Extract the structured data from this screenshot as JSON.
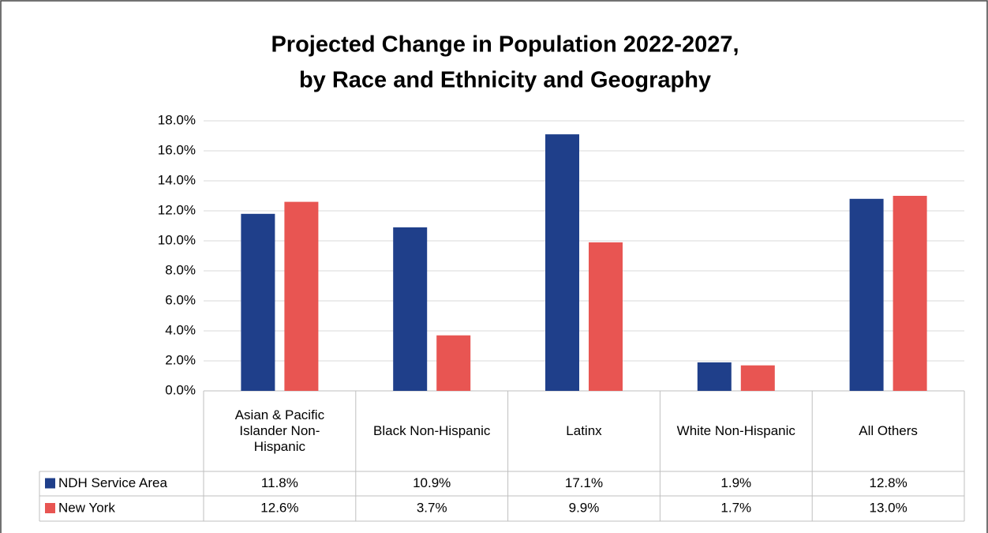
{
  "chart_data": {
    "type": "bar",
    "title": [
      "Projected Change in Population 2022-2027,",
      "by Race and Ethnicity and Geography"
    ],
    "categories": [
      "Asian & Pacific Islander Non-Hispanic",
      "Black Non-Hispanic",
      "Latinx",
      "White Non-Hispanic",
      "All Others"
    ],
    "series": [
      {
        "name": "NDH Service Area",
        "color": "#1f3f8a",
        "values": [
          11.8,
          10.9,
          17.1,
          1.9,
          12.8
        ],
        "value_labels": [
          "11.8%",
          "10.9%",
          "17.1%",
          "1.9%",
          "12.8%"
        ]
      },
      {
        "name": "New York",
        "color": "#e85552",
        "values": [
          12.6,
          3.7,
          9.9,
          1.7,
          13.0
        ],
        "value_labels": [
          "12.6%",
          "3.7%",
          "9.9%",
          "1.7%",
          "13.0%"
        ]
      }
    ],
    "ylim": [
      0,
      18
    ],
    "yticks": [
      {
        "value": 0,
        "label": "0.0%"
      },
      {
        "value": 2,
        "label": "2.0%"
      },
      {
        "value": 4,
        "label": "4.0%"
      },
      {
        "value": 6,
        "label": "6.0%"
      },
      {
        "value": 8,
        "label": "8.0%"
      },
      {
        "value": 10,
        "label": "10.0%"
      },
      {
        "value": 12,
        "label": "12.0%"
      },
      {
        "value": 14,
        "label": "14.0%"
      },
      {
        "value": 16,
        "label": "16.0%"
      },
      {
        "value": 18,
        "label": "18.0%"
      }
    ],
    "grid": true
  }
}
